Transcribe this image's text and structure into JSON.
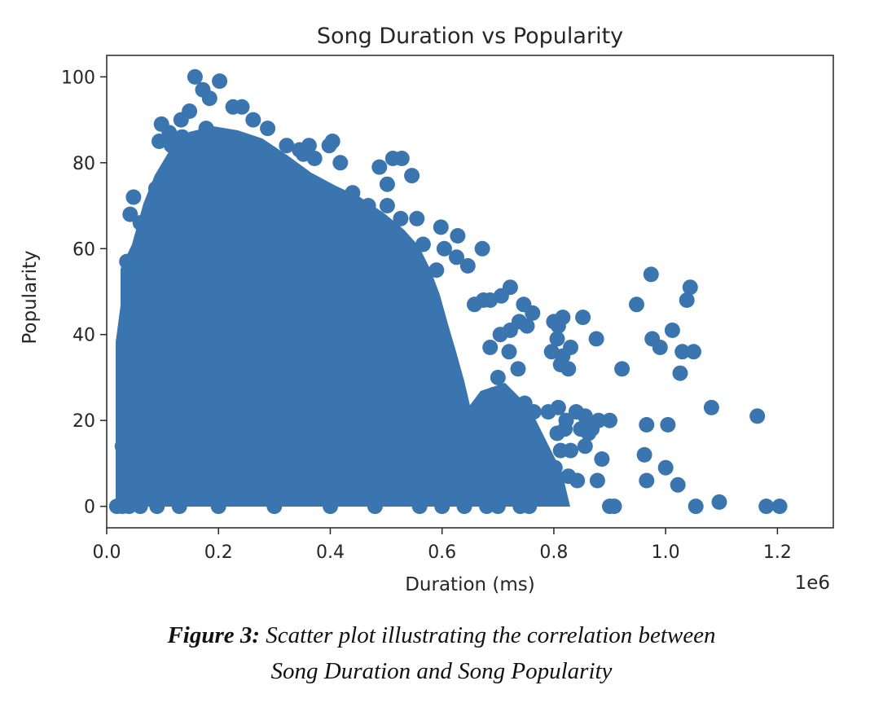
{
  "chart_data": {
    "type": "scatter",
    "title": "Song Duration vs Popularity",
    "xlabel": "Duration (ms)",
    "ylabel": "Popularity",
    "x_offset_label": "1e6",
    "xlim": [
      0,
      1300000
    ],
    "ylim": [
      -5,
      105
    ],
    "xticks": [
      0,
      200000,
      400000,
      600000,
      800000,
      1000000,
      1200000
    ],
    "xtick_labels": [
      "0.0",
      "0.2",
      "0.4",
      "0.6",
      "0.8",
      "1.0",
      "1.2"
    ],
    "yticks": [
      0,
      20,
      40,
      60,
      80,
      100
    ],
    "ytick_labels": [
      "0",
      "20",
      "40",
      "60",
      "80",
      "100"
    ],
    "grid": false,
    "color": "#3a75af",
    "points": [
      [
        158000,
        100
      ],
      [
        172000,
        97
      ],
      [
        184000,
        95
      ],
      [
        202000,
        99
      ],
      [
        226000,
        93
      ],
      [
        242000,
        93
      ],
      [
        98000,
        89
      ],
      [
        112000,
        87
      ],
      [
        133000,
        90
      ],
      [
        148000,
        92
      ],
      [
        262000,
        90
      ],
      [
        288000,
        88
      ],
      [
        94000,
        85
      ],
      [
        116000,
        84
      ],
      [
        135000,
        86
      ],
      [
        178000,
        88
      ],
      [
        322000,
        84
      ],
      [
        345000,
        83
      ],
      [
        362000,
        84
      ],
      [
        398000,
        84
      ],
      [
        404000,
        85
      ],
      [
        352000,
        82
      ],
      [
        372000,
        81
      ],
      [
        418000,
        80
      ],
      [
        488000,
        79
      ],
      [
        512000,
        81
      ],
      [
        528000,
        81
      ],
      [
        546000,
        77
      ],
      [
        502000,
        75
      ],
      [
        48000,
        72
      ],
      [
        42000,
        68
      ],
      [
        60000,
        66
      ],
      [
        88000,
        74
      ],
      [
        440000,
        73
      ],
      [
        468000,
        70
      ],
      [
        502000,
        70
      ],
      [
        526000,
        67
      ],
      [
        555000,
        67
      ],
      [
        598000,
        65
      ],
      [
        628000,
        63
      ],
      [
        566000,
        61
      ],
      [
        604000,
        60
      ],
      [
        672000,
        60
      ],
      [
        626000,
        58
      ],
      [
        646000,
        56
      ],
      [
        520000,
        58
      ],
      [
        556000,
        55
      ],
      [
        590000,
        55
      ],
      [
        36000,
        57
      ],
      [
        40000,
        53
      ],
      [
        44000,
        49
      ],
      [
        40000,
        45
      ],
      [
        34000,
        38
      ],
      [
        42000,
        42
      ],
      [
        32000,
        30
      ],
      [
        30000,
        22
      ],
      [
        28000,
        14
      ],
      [
        34000,
        10
      ],
      [
        36000,
        5
      ],
      [
        18000,
        0
      ],
      [
        28000,
        0
      ],
      [
        40000,
        0
      ],
      [
        60000,
        0
      ],
      [
        90000,
        0
      ],
      [
        130000,
        0
      ],
      [
        200000,
        0
      ],
      [
        300000,
        0
      ],
      [
        400000,
        0
      ],
      [
        480000,
        0
      ],
      [
        560000,
        0
      ],
      [
        600000,
        0
      ],
      [
        640000,
        0
      ],
      [
        680000,
        0
      ],
      [
        700000,
        0
      ],
      [
        740000,
        0
      ],
      [
        756000,
        0
      ],
      [
        722000,
        51
      ],
      [
        706000,
        49
      ],
      [
        686000,
        48
      ],
      [
        674000,
        48
      ],
      [
        658000,
        47
      ],
      [
        746000,
        47
      ],
      [
        762000,
        45
      ],
      [
        722000,
        41
      ],
      [
        738000,
        43
      ],
      [
        752000,
        42
      ],
      [
        704000,
        40
      ],
      [
        686000,
        37
      ],
      [
        720000,
        36
      ],
      [
        736000,
        32
      ],
      [
        700000,
        30
      ],
      [
        692000,
        26
      ],
      [
        748000,
        24
      ],
      [
        764000,
        22
      ],
      [
        730000,
        20
      ],
      [
        710000,
        18
      ],
      [
        760000,
        18
      ],
      [
        770000,
        15
      ],
      [
        754000,
        12
      ],
      [
        776000,
        9
      ],
      [
        766000,
        3
      ],
      [
        726000,
        6
      ],
      [
        700000,
        10
      ],
      [
        664000,
        15
      ],
      [
        640000,
        21
      ],
      [
        620000,
        28
      ],
      [
        600000,
        34
      ],
      [
        580000,
        40
      ],
      [
        560000,
        44
      ],
      [
        540000,
        46
      ],
      [
        620000,
        8
      ],
      [
        650000,
        4
      ],
      [
        800000,
        43
      ],
      [
        816000,
        44
      ],
      [
        808000,
        42
      ],
      [
        806000,
        39
      ],
      [
        796000,
        36
      ],
      [
        816000,
        35
      ],
      [
        830000,
        37
      ],
      [
        826000,
        32
      ],
      [
        812000,
        33
      ],
      [
        852000,
        44
      ],
      [
        876000,
        39
      ],
      [
        790000,
        22
      ],
      [
        808000,
        23
      ],
      [
        840000,
        22
      ],
      [
        822000,
        20
      ],
      [
        848000,
        18
      ],
      [
        862000,
        17
      ],
      [
        880000,
        20
      ],
      [
        900000,
        20
      ],
      [
        856000,
        21
      ],
      [
        820000,
        18
      ],
      [
        806000,
        17
      ],
      [
        812000,
        13
      ],
      [
        830000,
        13
      ],
      [
        856000,
        14
      ],
      [
        868000,
        18
      ],
      [
        886000,
        11
      ],
      [
        802000,
        9
      ],
      [
        826000,
        7
      ],
      [
        842000,
        6
      ],
      [
        878000,
        6
      ],
      [
        900000,
        0
      ],
      [
        908000,
        0
      ],
      [
        922000,
        32
      ],
      [
        948000,
        47
      ],
      [
        974000,
        54
      ],
      [
        976000,
        39
      ],
      [
        990000,
        37
      ],
      [
        1012000,
        41
      ],
      [
        1030000,
        36
      ],
      [
        1050000,
        36
      ],
      [
        1038000,
        48
      ],
      [
        1044000,
        51
      ],
      [
        1026000,
        31
      ],
      [
        966000,
        19
      ],
      [
        1004000,
        19
      ],
      [
        962000,
        12
      ],
      [
        966000,
        6
      ],
      [
        1000000,
        9
      ],
      [
        1022000,
        5
      ],
      [
        1054000,
        0
      ],
      [
        1096000,
        1
      ],
      [
        1082000,
        23
      ],
      [
        1164000,
        21
      ],
      [
        1180000,
        0
      ],
      [
        1204000,
        0
      ]
    ]
  },
  "caption": {
    "label": "Figure 3:",
    "line1": " Scatter plot illustrating the correlation between",
    "line2": "Song Duration and Song Popularity"
  }
}
